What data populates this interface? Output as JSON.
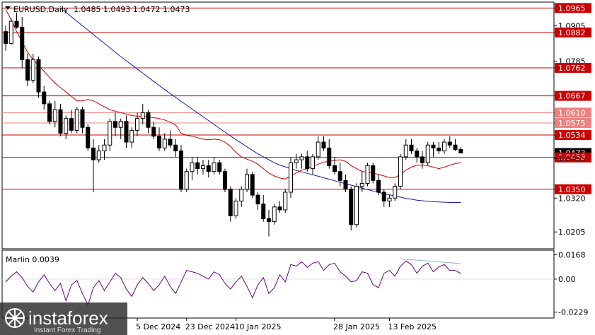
{
  "header": {
    "symbol_label": "EURUSD,Daily",
    "ohlc": "1.0485 1.0493 1.0472 1.0473"
  },
  "indicator": {
    "label": "Marlin 0.0039"
  },
  "watermark": {
    "brand": "instaforex",
    "tagline": "Instant Forex Trading"
  },
  "chart_data": [
    {
      "type": "candlestick",
      "symbol": "EURUSD",
      "timeframe": "Daily",
      "ohlc_last": {
        "open": 1.0485,
        "high": 1.0493,
        "low": 1.0472,
        "close": 1.0473
      },
      "ylim": [
        1.0148,
        1.0985
      ],
      "y_ticks": [
        "1.0965",
        "1.0905",
        "1.0882",
        "1.0785",
        "1.0762",
        "1.0667",
        "1.0610",
        "1.0575",
        "1.0534",
        "1.0473",
        "1.0458",
        "1.0455",
        "1.0350",
        "1.0320",
        "1.0205"
      ],
      "x_labels": [
        "5 Dec 2024",
        "23 Dec 2024",
        "10 Jan 2025",
        "28 Jan 2025",
        "13 Feb 2025"
      ],
      "current_price": "1.0473",
      "levels": [
        {
          "value": 1.0965,
          "label": "1.0965",
          "color": "#cc0000"
        },
        {
          "value": 1.0882,
          "label": "1.0882",
          "color": "#cc0000"
        },
        {
          "value": 1.0762,
          "label": "1.0762",
          "color": "#cc0000"
        },
        {
          "value": 1.0667,
          "label": "1.0667",
          "color": "#cc0000"
        },
        {
          "value": 1.061,
          "label": "1.0610",
          "color": "#f08080"
        },
        {
          "value": 1.0575,
          "label": "1.0575",
          "color": "#f08080"
        },
        {
          "value": 1.0534,
          "label": "1.0534",
          "color": "#cc0000"
        },
        {
          "value": 1.0458,
          "label": "1.0458",
          "color": "#cc0000"
        },
        {
          "value": 1.035,
          "label": "1.0350",
          "color": "#cc0000"
        }
      ],
      "candles": [
        [
          1.0885,
          1.0905,
          1.082,
          1.0845
        ],
        [
          1.0845,
          1.093,
          1.084,
          1.092
        ],
        [
          1.092,
          1.095,
          1.0895,
          1.09
        ],
        [
          1.09,
          1.0935,
          1.076,
          1.079
        ],
        [
          1.079,
          1.081,
          1.07,
          1.072
        ],
        [
          1.072,
          1.081,
          1.071,
          1.079
        ],
        [
          1.079,
          1.08,
          1.066,
          1.068
        ],
        [
          1.068,
          1.07,
          1.062,
          1.064
        ],
        [
          1.064,
          1.065,
          1.057,
          1.058
        ],
        [
          1.058,
          1.065,
          1.056,
          1.062
        ],
        [
          1.062,
          1.064,
          1.053,
          1.054
        ],
        [
          1.054,
          1.06,
          1.052,
          1.059
        ],
        [
          1.059,
          1.062,
          1.054,
          1.055
        ],
        [
          1.055,
          1.063,
          1.054,
          1.062
        ],
        [
          1.062,
          1.063,
          1.054,
          1.056
        ],
        [
          1.056,
          1.057,
          1.048,
          1.049
        ],
        [
          1.049,
          1.052,
          1.034,
          1.045
        ],
        [
          1.045,
          1.05,
          1.044,
          1.048
        ],
        [
          1.048,
          1.052,
          1.045,
          1.05
        ],
        [
          1.05,
          1.059,
          1.048,
          1.058
        ],
        [
          1.058,
          1.061,
          1.053,
          1.056
        ],
        [
          1.056,
          1.059,
          1.052,
          1.058
        ],
        [
          1.058,
          1.06,
          1.049,
          1.051
        ],
        [
          1.051,
          1.056,
          1.049,
          1.055
        ],
        [
          1.055,
          1.061,
          1.053,
          1.059
        ],
        [
          1.059,
          1.064,
          1.057,
          1.061
        ],
        [
          1.061,
          1.062,
          1.054,
          1.056
        ],
        [
          1.056,
          1.058,
          1.052,
          1.053
        ],
        [
          1.053,
          1.056,
          1.048,
          1.049
        ],
        [
          1.049,
          1.054,
          1.048,
          1.052
        ],
        [
          1.052,
          1.055,
          1.049,
          1.05
        ],
        [
          1.05,
          1.052,
          1.046,
          1.048
        ],
        [
          1.048,
          1.05,
          1.034,
          1.035
        ],
        [
          1.035,
          1.042,
          1.034,
          1.041
        ],
        [
          1.041,
          1.046,
          1.038,
          1.044
        ],
        [
          1.044,
          1.046,
          1.04,
          1.042
        ],
        [
          1.042,
          1.045,
          1.04,
          1.043
        ],
        [
          1.043,
          1.045,
          1.039,
          1.041
        ],
        [
          1.041,
          1.046,
          1.04,
          1.044
        ],
        [
          1.044,
          1.045,
          1.04,
          1.041
        ],
        [
          1.041,
          1.042,
          1.034,
          1.035
        ],
        [
          1.035,
          1.036,
          1.024,
          1.026
        ],
        [
          1.026,
          1.032,
          1.025,
          1.031
        ],
        [
          1.031,
          1.036,
          1.029,
          1.035
        ],
        [
          1.035,
          1.042,
          1.034,
          1.04
        ],
        [
          1.04,
          1.041,
          1.032,
          1.033
        ],
        [
          1.033,
          1.034,
          1.028,
          1.03
        ],
        [
          1.03,
          1.033,
          1.024,
          1.025
        ],
        [
          1.025,
          1.028,
          1.019,
          1.024
        ],
        [
          1.024,
          1.03,
          1.023,
          1.029
        ],
        [
          1.029,
          1.031,
          1.027,
          1.028
        ],
        [
          1.028,
          1.035,
          1.027,
          1.034
        ],
        [
          1.034,
          1.046,
          1.032,
          1.044
        ],
        [
          1.044,
          1.047,
          1.042,
          1.045
        ],
        [
          1.045,
          1.047,
          1.042,
          1.046
        ],
        [
          1.046,
          1.048,
          1.041,
          1.042
        ],
        [
          1.042,
          1.047,
          1.04,
          1.046
        ],
        [
          1.046,
          1.053,
          1.045,
          1.051
        ],
        [
          1.051,
          1.053,
          1.048,
          1.049
        ],
        [
          1.049,
          1.052,
          1.042,
          1.043
        ],
        [
          1.043,
          1.046,
          1.04,
          1.041
        ],
        [
          1.041,
          1.044,
          1.036,
          1.038
        ],
        [
          1.038,
          1.04,
          1.034,
          1.035
        ],
        [
          1.035,
          1.036,
          1.021,
          1.023
        ],
        [
          1.023,
          1.037,
          1.022,
          1.036
        ],
        [
          1.036,
          1.041,
          1.034,
          1.037
        ],
        [
          1.037,
          1.044,
          1.036,
          1.043
        ],
        [
          1.043,
          1.044,
          1.037,
          1.038
        ],
        [
          1.038,
          1.04,
          1.033,
          1.034
        ],
        [
          1.034,
          1.035,
          1.029,
          1.031
        ],
        [
          1.031,
          1.033,
          1.029,
          1.032
        ],
        [
          1.032,
          1.037,
          1.031,
          1.036
        ],
        [
          1.036,
          1.047,
          1.035,
          1.046
        ],
        [
          1.046,
          1.052,
          1.045,
          1.05
        ],
        [
          1.05,
          1.052,
          1.047,
          1.048
        ],
        [
          1.048,
          1.049,
          1.044,
          1.046
        ],
        [
          1.046,
          1.048,
          1.042,
          1.044
        ],
        [
          1.044,
          1.051,
          1.043,
          1.05
        ],
        [
          1.05,
          1.051,
          1.046,
          1.049
        ],
        [
          1.049,
          1.051,
          1.047,
          1.048
        ],
        [
          1.048,
          1.052,
          1.047,
          1.051
        ],
        [
          1.051,
          1.053,
          1.049,
          1.05
        ],
        [
          1.05,
          1.052,
          1.048,
          1.0485
        ],
        [
          1.0485,
          1.0493,
          1.0472,
          1.0473
        ]
      ],
      "moving_averages": [
        {
          "name": "",
          "color": "#cc0000",
          "values": [
            1.096,
            1.0925,
            1.0885,
            1.085,
            1.0815,
            1.079,
            1.077,
            1.075,
            1.073,
            1.071,
            1.0695,
            1.068,
            1.0665,
            1.065,
            1.065,
            1.0655,
            1.065,
            1.064,
            1.063,
            1.062,
            1.0615,
            1.061,
            1.0605,
            1.06,
            1.0598,
            1.0597,
            1.0595,
            1.0593,
            1.059,
            1.0585,
            1.0578,
            1.0568,
            1.054,
            1.0533,
            1.053,
            1.0525,
            1.052,
            1.0518,
            1.052,
            1.0518,
            1.051,
            1.0495,
            1.0475,
            1.046,
            1.0452,
            1.0445,
            1.0435,
            1.042,
            1.0405,
            1.0395,
            1.0388,
            1.0385,
            1.0395,
            1.0405,
            1.0415,
            1.042,
            1.0428,
            1.0435,
            1.0442,
            1.0445,
            1.0448,
            1.045,
            1.0445,
            1.043,
            1.042,
            1.041,
            1.0408,
            1.0405,
            1.04,
            1.0395,
            1.039,
            1.039,
            1.04,
            1.0415,
            1.0425,
            1.0432,
            1.0432,
            1.043,
            1.0425,
            1.042,
            1.0425,
            1.0432,
            1.0437,
            1.044
          ]
        },
        {
          "name": "",
          "color": "#1a1aaa",
          "values": [
            null,
            null,
            null,
            null,
            null,
            null,
            null,
            null,
            null,
            null,
            1.0965,
            1.095,
            1.0935,
            1.092,
            1.0905,
            1.089,
            1.0875,
            1.086,
            1.0845,
            1.083,
            1.0815,
            1.08,
            1.0786,
            1.0772,
            1.0758,
            1.0744,
            1.073,
            1.0716,
            1.0702,
            1.0688,
            1.0675,
            1.0662,
            1.0648,
            1.0635,
            1.0622,
            1.0609,
            1.0596,
            1.0583,
            1.057,
            1.0557,
            1.0544,
            1.0531,
            1.0518,
            1.0506,
            1.0494,
            1.0482,
            1.047,
            1.046,
            1.045,
            1.044,
            1.0432,
            1.0426,
            1.042,
            1.0414,
            1.0409,
            1.0404,
            1.0399,
            1.0394,
            1.0389,
            1.0384,
            1.0379,
            1.0374,
            1.0369,
            1.0364,
            1.0359,
            1.0354,
            1.0349,
            1.0344,
            1.0339,
            1.0335,
            1.0331,
            1.0327,
            1.0323,
            1.0319,
            1.0316,
            1.0313,
            1.0311,
            1.0309,
            1.0308,
            1.0307,
            1.0306,
            1.0305,
            1.0305,
            1.0305
          ]
        }
      ]
    },
    {
      "type": "line",
      "title": "Marlin 0.0039",
      "ylim": [
        -0.027,
        0.02
      ],
      "y_ticks": [
        "0.0168",
        "0.00",
        "-0.0229"
      ],
      "series": [
        {
          "color": "#6a0080",
          "values": [
            -0.002,
            0.002,
            0.005,
            0.001,
            -0.005,
            -0.009,
            -0.002,
            0.003,
            -0.003,
            -0.008,
            -0.003,
            -0.015,
            -0.004,
            -0.001,
            -0.01,
            -0.018,
            -0.006,
            -0.001,
            -0.008,
            -0.002,
            0.004,
            0.001,
            -0.007,
            -0.012,
            -0.004,
            0.001,
            -0.003,
            -0.008,
            -0.004,
            0.002,
            -0.005,
            -0.01,
            -0.002,
            0.006,
            0.005,
            0.004,
            0.002,
            0.0,
            0.005,
            0.003,
            -0.003,
            -0.007,
            -0.002,
            0.002,
            -0.005,
            -0.013,
            -0.004,
            0.001,
            -0.01,
            -0.006,
            0.003,
            -0.002,
            0.01,
            0.009,
            0.012,
            0.008,
            0.011,
            0.012,
            0.006,
            0.01,
            0.011,
            0.005,
            0.002,
            -0.002,
            -0.001,
            0.005,
            0.004,
            -0.004,
            -0.006,
            0.004,
            0.006,
            0.002,
            0.009,
            0.0125,
            0.01,
            0.004,
            0.009,
            0.011,
            0.005,
            0.0085,
            0.01,
            0.006,
            0.006,
            0.0039
          ]
        },
        {
          "color": "#8fb0cc",
          "values": [
            null,
            null,
            null,
            null,
            null,
            null,
            null,
            null,
            null,
            null,
            null,
            null,
            null,
            null,
            null,
            null,
            null,
            null,
            null,
            null,
            null,
            null,
            null,
            null,
            null,
            null,
            null,
            null,
            null,
            null,
            null,
            null,
            null,
            null,
            null,
            null,
            null,
            null,
            null,
            null,
            null,
            null,
            null,
            null,
            null,
            null,
            null,
            null,
            null,
            null,
            null,
            null,
            null,
            null,
            null,
            null,
            null,
            null,
            null,
            null,
            null,
            null,
            null,
            null,
            null,
            null,
            null,
            null,
            null,
            null,
            null,
            null,
            0.014,
            0.0137,
            0.0134,
            0.0131,
            0.0128,
            0.0125,
            0.0122,
            0.0119,
            0.0116,
            0.0113,
            0.011,
            0.0107
          ]
        }
      ]
    }
  ],
  "colors": {
    "bull": "#ffffff",
    "bear": "#000000",
    "level_strong": "#cc0000",
    "level_light": "#f08080",
    "grid": "#c0c0c0"
  }
}
